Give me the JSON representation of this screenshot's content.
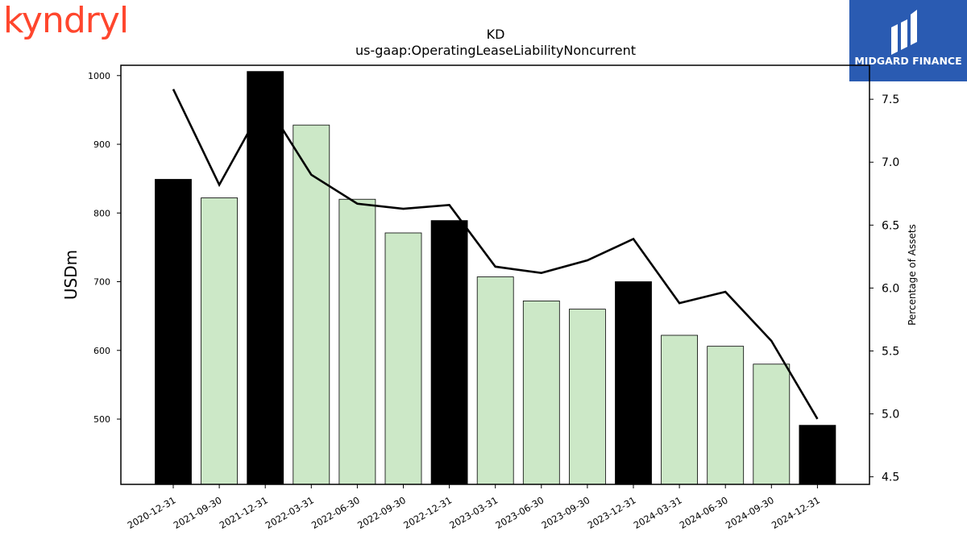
{
  "brand_left": {
    "name": "kyndryl"
  },
  "brand_right": {
    "name": "MIDGARD FINANCE"
  },
  "colors": {
    "annual_bar": "#000000",
    "quarter_bar": "#cce8c7",
    "line": "#000000",
    "brand_left": "#ff462d",
    "brand_right": "#2a5bb2"
  },
  "chart_data": {
    "type": "bar",
    "title": "KD",
    "subtitle": "us-gaap:OperatingLeaseLiabilityNoncurrent",
    "ylabel": "USDm",
    "y2label": "Percentage of Assets",
    "categories": [
      "2020-12-31",
      "2021-09-30",
      "2021-12-31",
      "2022-03-31",
      "2022-06-30",
      "2022-09-30",
      "2022-12-31",
      "2023-03-31",
      "2023-06-30",
      "2023-09-30",
      "2023-12-31",
      "2024-03-31",
      "2024-06-30",
      "2024-09-30",
      "2024-12-31"
    ],
    "series": [
      {
        "type": "bar",
        "axis": "left",
        "values": [
          849,
          822,
          1006,
          928,
          820,
          771,
          789,
          707,
          672,
          660,
          700,
          622,
          606,
          580,
          491
        ],
        "annual_flags": [
          true,
          false,
          true,
          false,
          false,
          false,
          true,
          false,
          false,
          false,
          true,
          false,
          false,
          false,
          true
        ]
      },
      {
        "type": "line",
        "axis": "right",
        "values": [
          7.58,
          6.82,
          7.48,
          6.9,
          6.67,
          6.63,
          6.66,
          6.17,
          6.12,
          6.22,
          6.39,
          5.88,
          5.97,
          5.58,
          4.96
        ]
      }
    ],
    "ylim": [
      405,
      1015
    ],
    "yticks": [
      500,
      600,
      700,
      800,
      900,
      1000
    ],
    "y2lim": [
      4.44,
      7.77
    ],
    "y2ticks": [
      "4.5",
      "5.0",
      "5.5",
      "6.0",
      "6.5",
      "7.0",
      "7.5"
    ],
    "grid": false,
    "legend": "none"
  }
}
